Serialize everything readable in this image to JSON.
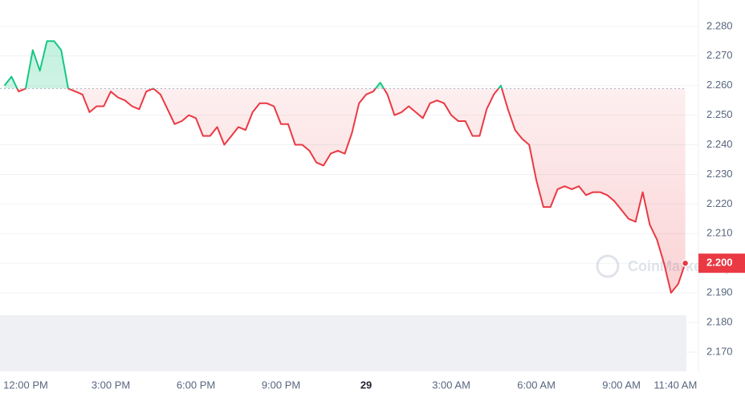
{
  "chart_data": {
    "type": "line",
    "watermark": "CoinMarketCap",
    "x": [
      -0.75,
      -0.5,
      -0.25,
      0,
      0.25,
      0.5,
      0.75,
      1,
      1.25,
      1.5,
      1.75,
      2,
      2.25,
      2.5,
      2.75,
      3,
      3.25,
      3.5,
      3.75,
      4,
      4.25,
      4.5,
      4.75,
      5,
      5.25,
      5.5,
      5.75,
      6,
      6.25,
      6.5,
      6.75,
      7,
      7.25,
      7.5,
      7.75,
      8,
      8.25,
      8.5,
      8.75,
      9,
      9.25,
      9.5,
      9.75,
      10,
      10.25,
      10.5,
      10.75,
      11,
      11.25,
      11.5,
      11.75,
      12,
      12.25,
      12.5,
      12.75,
      13,
      13.25,
      13.5,
      13.75,
      14,
      14.25,
      14.5,
      14.75,
      15,
      15.25,
      15.5,
      15.75,
      16,
      16.25,
      16.5,
      16.75,
      17,
      17.25,
      17.5,
      17.75,
      18,
      18.25,
      18.5,
      18.75,
      19,
      19.25,
      19.5,
      19.75,
      20,
      20.25,
      20.5,
      20.75,
      21,
      21.25,
      21.5,
      21.75,
      22,
      22.25,
      22.5,
      22.75,
      23,
      23.25
    ],
    "values": [
      2.26,
      2.263,
      2.258,
      2.259,
      2.272,
      2.265,
      2.275,
      2.275,
      2.272,
      2.259,
      2.258,
      2.257,
      2.251,
      2.253,
      2.253,
      2.258,
      2.256,
      2.255,
      2.253,
      2.252,
      2.258,
      2.259,
      2.257,
      2.252,
      2.247,
      2.248,
      2.25,
      2.249,
      2.243,
      2.243,
      2.246,
      2.24,
      2.243,
      2.246,
      2.245,
      2.251,
      2.254,
      2.254,
      2.253,
      2.247,
      2.247,
      2.24,
      2.24,
      2.238,
      2.234,
      2.233,
      2.237,
      2.238,
      2.237,
      2.244,
      2.254,
      2.257,
      2.258,
      2.261,
      2.257,
      2.25,
      2.251,
      2.253,
      2.251,
      2.249,
      2.254,
      2.255,
      2.254,
      2.25,
      2.248,
      2.248,
      2.243,
      2.243,
      2.252,
      2.257,
      2.26,
      2.252,
      2.245,
      2.242,
      2.24,
      2.228,
      2.219,
      2.219,
      2.225,
      2.226,
      2.225,
      2.226,
      2.223,
      2.224,
      2.224,
      2.223,
      2.221,
      2.218,
      2.215,
      2.214,
      2.224,
      2.213,
      2.208,
      2.2,
      2.19,
      2.193,
      2.2
    ],
    "baseline": 2.259,
    "up_color": "#16c784",
    "down_color": "#ea3943",
    "price_label": {
      "value": 2.2,
      "label": "2.200"
    },
    "xlim": [
      -0.906,
      23.29
    ],
    "xticks": [
      {
        "value": 0,
        "label": "12:00 PM"
      },
      {
        "value": 3,
        "label": "3:00 PM"
      },
      {
        "value": 6,
        "label": "6:00 PM"
      },
      {
        "value": 9,
        "label": "9:00 PM"
      },
      {
        "value": 12,
        "label": "29"
      },
      {
        "value": 15,
        "label": "3:00 AM"
      },
      {
        "value": 18,
        "label": "6:00 AM"
      },
      {
        "value": 21,
        "label": "9:00 AM"
      },
      {
        "value": 23.667,
        "label": "11:40 AM"
      }
    ],
    "ylim": [
      2.1643,
      2.2889
    ],
    "yticks": [
      {
        "value": 2.17,
        "label": "2.170"
      },
      {
        "value": 2.18,
        "label": "2.180"
      },
      {
        "value": 2.19,
        "label": "2.190"
      },
      {
        "value": 2.2,
        "label": "2.200"
      },
      {
        "value": 2.21,
        "label": "2.210"
      },
      {
        "value": 2.22,
        "label": "2.220"
      },
      {
        "value": 2.23,
        "label": "2.230"
      },
      {
        "value": 2.24,
        "label": "2.240"
      },
      {
        "value": 2.25,
        "label": "2.250"
      },
      {
        "value": 2.26,
        "label": "2.260"
      },
      {
        "value": 2.27,
        "label": "2.270"
      },
      {
        "value": 2.28,
        "label": "2.280"
      }
    ],
    "grid": true
  }
}
